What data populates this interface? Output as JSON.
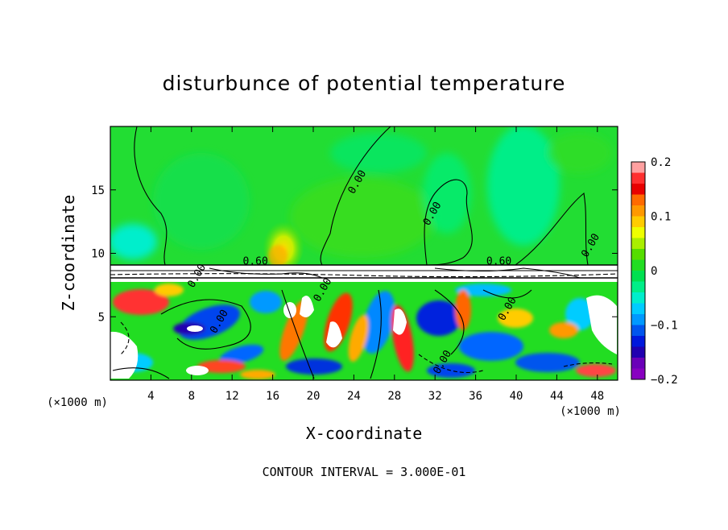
{
  "chart_data": {
    "type": "heatmap",
    "title": "disturbunce of potential temperature",
    "xlabel": "X-coordinate",
    "ylabel": "Z-coordinate",
    "x_unit_left": "(×1000 m)",
    "x_unit_right": "(×1000 m)",
    "xlim": [
      0,
      50
    ],
    "ylim": [
      0,
      20
    ],
    "x_ticks": [
      4,
      8,
      12,
      16,
      20,
      24,
      28,
      32,
      36,
      40,
      44,
      48
    ],
    "y_ticks": [
      5,
      10,
      15
    ],
    "colorbar": {
      "range": [
        -0.2,
        0.2
      ],
      "tick_values": [
        0.2,
        0.1,
        0,
        -0.1,
        -0.2
      ],
      "tick_labels": [
        "0.2",
        "0.1",
        "0",
        "−0.1",
        "−0.2"
      ],
      "colors": [
        "#ffa0a0",
        "#ff3030",
        "#e80000",
        "#ff6a00",
        "#ff9900",
        "#ffcc00",
        "#eeff00",
        "#aaee00",
        "#55dd00",
        "#22dd22",
        "#00e050",
        "#00ee88",
        "#00eecc",
        "#00ccff",
        "#0099ff",
        "#0055ee",
        "#0018dd",
        "#2000b0",
        "#6a00b8",
        "#8800c0"
      ]
    },
    "contour_labels": [
      {
        "text": "0.00",
        "x": 24.6,
        "z": 15.5
      },
      {
        "text": "0.00",
        "x": 32.0,
        "z": 13.0
      },
      {
        "text": "0.00",
        "x": 47.6,
        "z": 10.5
      },
      {
        "text": "0.60",
        "x": 14.3,
        "z": 9.1
      },
      {
        "text": "0.60",
        "x": 38.3,
        "z": 9.1
      },
      {
        "text": "0.00",
        "x": 8.8,
        "z": 8.1
      },
      {
        "text": "0.00",
        "x": 21.2,
        "z": 7.0
      },
      {
        "text": "0.00",
        "x": 11.0,
        "z": 4.5
      },
      {
        "text": "0.00",
        "x": 39.4,
        "z": 5.5
      },
      {
        "text": "0.00",
        "x": 33.0,
        "z": 1.3
      }
    ],
    "footer": "CONTOUR INTERVAL = 3.000E-01"
  }
}
